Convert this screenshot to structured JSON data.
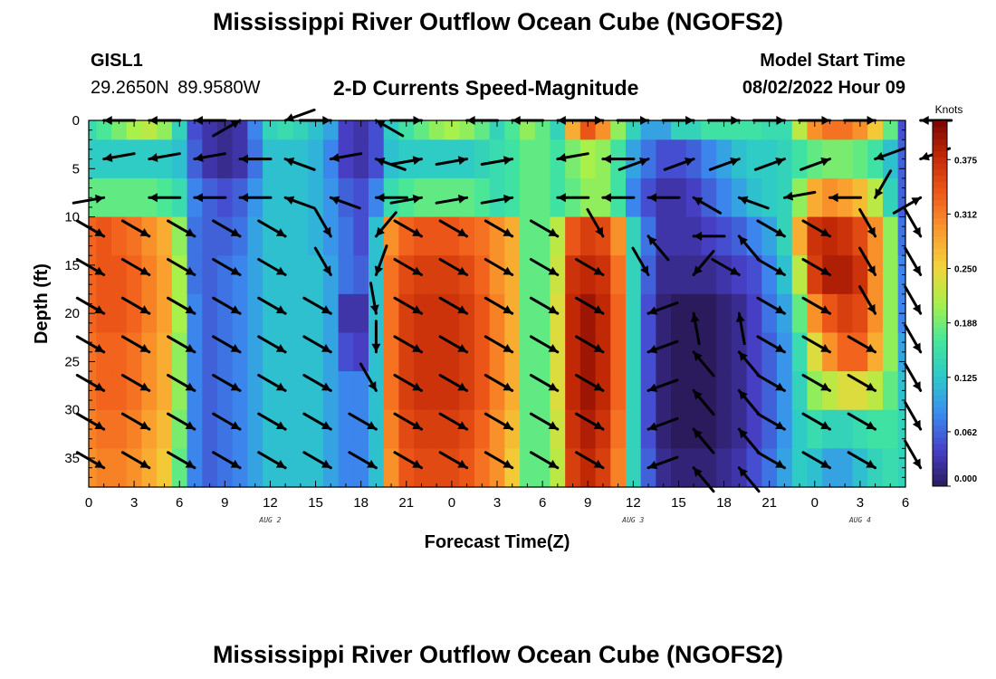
{
  "header": {
    "title": "Mississippi River Outflow Ocean Cube (NGOFS2)",
    "station_id": "GISL1",
    "station_coords": "29.2650N  89.9580W",
    "panel_title": "2-D Currents Speed-Magnitude",
    "model_start_label": "Model Start Time",
    "model_start_value": "08/02/2022 Hour 09"
  },
  "footer": {
    "title": "Mississippi River Outflow Ocean Cube (NGOFS2)"
  },
  "chart_data": {
    "type": "heatmap",
    "xlabel": "Forecast Time(Z)",
    "ylabel": "Depth (ft)",
    "xlim": [
      0,
      54
    ],
    "ylim": [
      0,
      38
    ],
    "y_inverted": true,
    "x_ticks": [
      {
        "h": 0,
        "label": "0"
      },
      {
        "h": 3,
        "label": "3"
      },
      {
        "h": 6,
        "label": "6"
      },
      {
        "h": 9,
        "label": "9"
      },
      {
        "h": 12,
        "label": "12"
      },
      {
        "h": 15,
        "label": "15"
      },
      {
        "h": 18,
        "label": "18"
      },
      {
        "h": 21,
        "label": "21"
      },
      {
        "h": 24,
        "label": "0"
      },
      {
        "h": 27,
        "label": "3"
      },
      {
        "h": 30,
        "label": "6"
      },
      {
        "h": 33,
        "label": "9"
      },
      {
        "h": 36,
        "label": "12"
      },
      {
        "h": 39,
        "label": "15"
      },
      {
        "h": 42,
        "label": "18"
      },
      {
        "h": 45,
        "label": "21"
      },
      {
        "h": 48,
        "label": "0"
      },
      {
        "h": 51,
        "label": "3"
      },
      {
        "h": 54,
        "label": "6"
      }
    ],
    "y_ticks": [
      0,
      5,
      10,
      15,
      20,
      25,
      30,
      35
    ],
    "date_labels": [
      {
        "h": 12,
        "label": "AUG 2"
      },
      {
        "h": 36,
        "label": "AUG 3"
      },
      {
        "h": 51,
        "label": "AUG 4"
      }
    ],
    "colorbar": {
      "unit_label": "Knots",
      "min": 0,
      "max": 0.42,
      "ticks": [
        "0.000",
        "0.062",
        "0.125",
        "0.188",
        "0.250",
        "0.312",
        "0.375"
      ],
      "tick_values": [
        0,
        0.0625,
        0.125,
        0.1875,
        0.25,
        0.3125,
        0.375
      ],
      "colormap": [
        "#2b1a5c",
        "#4740c8",
        "#3a8cf0",
        "#2cc9c9",
        "#45e89a",
        "#a8f04a",
        "#f2d43a",
        "#fb9a2e",
        "#f05a1a",
        "#c42a06",
        "#7a0403"
      ]
    },
    "speed_knots": {
      "hours": [
        0,
        1,
        2,
        3,
        4,
        5,
        6,
        7,
        8,
        9,
        10,
        11,
        12,
        13,
        14,
        15,
        16,
        17,
        18,
        19,
        20,
        21,
        22,
        23,
        24,
        25,
        26,
        27,
        28,
        29,
        30,
        31,
        32,
        33,
        34,
        35,
        36,
        37,
        38,
        39,
        40,
        41,
        42,
        43,
        44,
        45,
        46,
        47,
        48,
        49,
        50,
        51,
        52,
        53,
        54
      ],
      "depths_ft": [
        0,
        4,
        8,
        12,
        16,
        20,
        24,
        28,
        32,
        36
      ],
      "values": [
        [
          0.15,
          0.17,
          0.19,
          0.21,
          0.22,
          0.2,
          0.14,
          0.05,
          0.03,
          0.02,
          0.03,
          0.08,
          0.14,
          0.15,
          0.14,
          0.12,
          0.1,
          0.04,
          0.03,
          0.05,
          0.13,
          0.16,
          0.18,
          0.2,
          0.21,
          0.2,
          0.18,
          0.14,
          0.17,
          0.2,
          0.18,
          0.14,
          0.28,
          0.34,
          0.3,
          0.2,
          0.14,
          0.1,
          0.1,
          0.14,
          0.14,
          0.16,
          0.16,
          0.16,
          0.16,
          0.15,
          0.15,
          0.22,
          0.3,
          0.32,
          0.32,
          0.3,
          0.26,
          0.18,
          0.05
        ],
        [
          0.13,
          0.13,
          0.13,
          0.13,
          0.13,
          0.13,
          0.12,
          0.06,
          0.03,
          0.02,
          0.03,
          0.07,
          0.12,
          0.12,
          0.12,
          0.11,
          0.08,
          0.04,
          0.03,
          0.05,
          0.12,
          0.13,
          0.13,
          0.13,
          0.13,
          0.13,
          0.14,
          0.15,
          0.16,
          0.18,
          0.18,
          0.16,
          0.19,
          0.21,
          0.2,
          0.16,
          0.1,
          0.07,
          0.05,
          0.05,
          0.06,
          0.08,
          0.1,
          0.12,
          0.13,
          0.13,
          0.14,
          0.16,
          0.18,
          0.19,
          0.19,
          0.18,
          0.16,
          0.12,
          0.06
        ],
        [
          0.18,
          0.18,
          0.18,
          0.18,
          0.18,
          0.17,
          0.15,
          0.08,
          0.06,
          0.05,
          0.06,
          0.09,
          0.12,
          0.12,
          0.12,
          0.11,
          0.09,
          0.06,
          0.05,
          0.08,
          0.15,
          0.17,
          0.18,
          0.18,
          0.18,
          0.18,
          0.17,
          0.15,
          0.16,
          0.18,
          0.18,
          0.16,
          0.18,
          0.2,
          0.2,
          0.16,
          0.08,
          0.05,
          0.03,
          0.03,
          0.04,
          0.06,
          0.08,
          0.1,
          0.12,
          0.13,
          0.14,
          0.2,
          0.28,
          0.3,
          0.29,
          0.27,
          0.22,
          0.14,
          0.06
        ],
        [
          0.33,
          0.34,
          0.33,
          0.32,
          0.3,
          0.28,
          0.2,
          0.07,
          0.06,
          0.06,
          0.07,
          0.1,
          0.12,
          0.12,
          0.12,
          0.11,
          0.09,
          0.07,
          0.05,
          0.12,
          0.3,
          0.33,
          0.34,
          0.34,
          0.34,
          0.33,
          0.32,
          0.3,
          0.28,
          0.18,
          0.18,
          0.22,
          0.34,
          0.36,
          0.35,
          0.3,
          0.14,
          0.07,
          0.03,
          0.03,
          0.03,
          0.04,
          0.05,
          0.06,
          0.08,
          0.1,
          0.14,
          0.28,
          0.37,
          0.38,
          0.37,
          0.35,
          0.3,
          0.2,
          0.07
        ],
        [
          0.33,
          0.34,
          0.34,
          0.33,
          0.31,
          0.29,
          0.21,
          0.07,
          0.06,
          0.07,
          0.08,
          0.1,
          0.12,
          0.12,
          0.12,
          0.12,
          0.1,
          0.07,
          0.06,
          0.12,
          0.32,
          0.35,
          0.36,
          0.36,
          0.36,
          0.35,
          0.33,
          0.3,
          0.28,
          0.18,
          0.18,
          0.23,
          0.37,
          0.38,
          0.37,
          0.32,
          0.14,
          0.06,
          0.02,
          0.02,
          0.02,
          0.02,
          0.03,
          0.04,
          0.05,
          0.08,
          0.12,
          0.22,
          0.36,
          0.39,
          0.39,
          0.37,
          0.3,
          0.2,
          0.08
        ],
        [
          0.33,
          0.34,
          0.34,
          0.33,
          0.31,
          0.29,
          0.21,
          0.08,
          0.06,
          0.07,
          0.08,
          0.1,
          0.12,
          0.12,
          0.12,
          0.12,
          0.1,
          0.03,
          0.03,
          0.12,
          0.32,
          0.36,
          0.37,
          0.37,
          0.37,
          0.36,
          0.34,
          0.31,
          0.28,
          0.18,
          0.18,
          0.24,
          0.38,
          0.4,
          0.38,
          0.33,
          0.14,
          0.05,
          0.01,
          0.0,
          0.0,
          0.0,
          0.01,
          0.02,
          0.04,
          0.07,
          0.1,
          0.18,
          0.3,
          0.34,
          0.36,
          0.35,
          0.3,
          0.2,
          0.08
        ],
        [
          0.32,
          0.33,
          0.33,
          0.32,
          0.3,
          0.28,
          0.2,
          0.08,
          0.06,
          0.07,
          0.08,
          0.1,
          0.12,
          0.12,
          0.12,
          0.12,
          0.1,
          0.05,
          0.04,
          0.12,
          0.32,
          0.36,
          0.37,
          0.37,
          0.37,
          0.36,
          0.34,
          0.31,
          0.28,
          0.18,
          0.18,
          0.24,
          0.38,
          0.4,
          0.38,
          0.33,
          0.14,
          0.05,
          0.01,
          0.0,
          0.0,
          0.0,
          0.01,
          0.02,
          0.04,
          0.06,
          0.09,
          0.15,
          0.24,
          0.3,
          0.33,
          0.33,
          0.28,
          0.2,
          0.1
        ],
        [
          0.32,
          0.33,
          0.33,
          0.32,
          0.3,
          0.28,
          0.2,
          0.08,
          0.06,
          0.07,
          0.08,
          0.1,
          0.12,
          0.12,
          0.12,
          0.12,
          0.1,
          0.08,
          0.08,
          0.12,
          0.32,
          0.36,
          0.37,
          0.37,
          0.37,
          0.36,
          0.34,
          0.31,
          0.28,
          0.18,
          0.18,
          0.24,
          0.38,
          0.4,
          0.38,
          0.33,
          0.14,
          0.05,
          0.01,
          0.0,
          0.0,
          0.0,
          0.01,
          0.02,
          0.04,
          0.06,
          0.09,
          0.14,
          0.2,
          0.22,
          0.24,
          0.24,
          0.22,
          0.18,
          0.12
        ],
        [
          0.31,
          0.32,
          0.32,
          0.31,
          0.29,
          0.27,
          0.19,
          0.08,
          0.06,
          0.07,
          0.08,
          0.1,
          0.12,
          0.12,
          0.12,
          0.12,
          0.1,
          0.08,
          0.08,
          0.12,
          0.31,
          0.35,
          0.36,
          0.36,
          0.36,
          0.35,
          0.33,
          0.3,
          0.27,
          0.18,
          0.18,
          0.23,
          0.37,
          0.39,
          0.37,
          0.32,
          0.14,
          0.05,
          0.01,
          0.0,
          0.0,
          0.0,
          0.01,
          0.02,
          0.04,
          0.06,
          0.09,
          0.13,
          0.15,
          0.14,
          0.14,
          0.15,
          0.16,
          0.16,
          0.14
        ],
        [
          0.3,
          0.31,
          0.31,
          0.3,
          0.28,
          0.26,
          0.18,
          0.08,
          0.06,
          0.07,
          0.08,
          0.1,
          0.12,
          0.12,
          0.12,
          0.12,
          0.1,
          0.08,
          0.08,
          0.12,
          0.3,
          0.34,
          0.35,
          0.35,
          0.35,
          0.34,
          0.32,
          0.3,
          0.26,
          0.18,
          0.18,
          0.22,
          0.36,
          0.38,
          0.36,
          0.31,
          0.14,
          0.06,
          0.02,
          0.01,
          0.01,
          0.01,
          0.02,
          0.03,
          0.05,
          0.07,
          0.1,
          0.13,
          0.12,
          0.1,
          0.1,
          0.12,
          0.14,
          0.15,
          0.14
        ]
      ]
    },
    "vectors_direction_deg": {
      "hours": [
        1,
        4,
        7,
        10,
        13,
        16,
        19,
        22,
        25,
        28,
        31,
        34,
        37,
        40,
        43,
        46,
        49,
        52,
        55
      ],
      "depths_ft": [
        0,
        4,
        8,
        12,
        16,
        20,
        24,
        28,
        32,
        36
      ],
      "values": [
        [
          180,
          180,
          180,
          30,
          200,
          0,
          150,
          0,
          180,
          180,
          180,
          0,
          0,
          0,
          0,
          0,
          0,
          0,
          180
        ],
        [
          190,
          190,
          190,
          180,
          160,
          190,
          160,
          10,
          10,
          10,
          190,
          180,
          20,
          20,
          20,
          20,
          20,
          200,
          200
        ],
        [
          10,
          180,
          180,
          180,
          160,
          160,
          180,
          10,
          10,
          10,
          180,
          180,
          180,
          150,
          160,
          190,
          180,
          240,
          30
        ],
        [
          330,
          330,
          330,
          330,
          330,
          300,
          230,
          330,
          330,
          330,
          330,
          300,
          130,
          180,
          130,
          330,
          330,
          300,
          300
        ],
        [
          330,
          330,
          330,
          330,
          330,
          300,
          250,
          330,
          330,
          330,
          330,
          330,
          300,
          230,
          330,
          330,
          330,
          300,
          300
        ],
        [
          330,
          330,
          330,
          330,
          330,
          330,
          280,
          330,
          330,
          330,
          330,
          330,
          200,
          100,
          100,
          330,
          330,
          300,
          300
        ],
        [
          330,
          330,
          330,
          330,
          330,
          330,
          270,
          330,
          330,
          330,
          330,
          330,
          200,
          130,
          130,
          330,
          330,
          330,
          300
        ],
        [
          330,
          330,
          330,
          330,
          330,
          330,
          300,
          330,
          330,
          330,
          330,
          330,
          200,
          130,
          130,
          330,
          330,
          330,
          300
        ],
        [
          330,
          330,
          330,
          330,
          330,
          330,
          330,
          330,
          330,
          330,
          330,
          330,
          200,
          130,
          130,
          330,
          330,
          330,
          300
        ],
        [
          330,
          330,
          330,
          330,
          330,
          330,
          330,
          330,
          330,
          330,
          330,
          330,
          200,
          130,
          130,
          330,
          330,
          330,
          300
        ]
      ]
    }
  }
}
